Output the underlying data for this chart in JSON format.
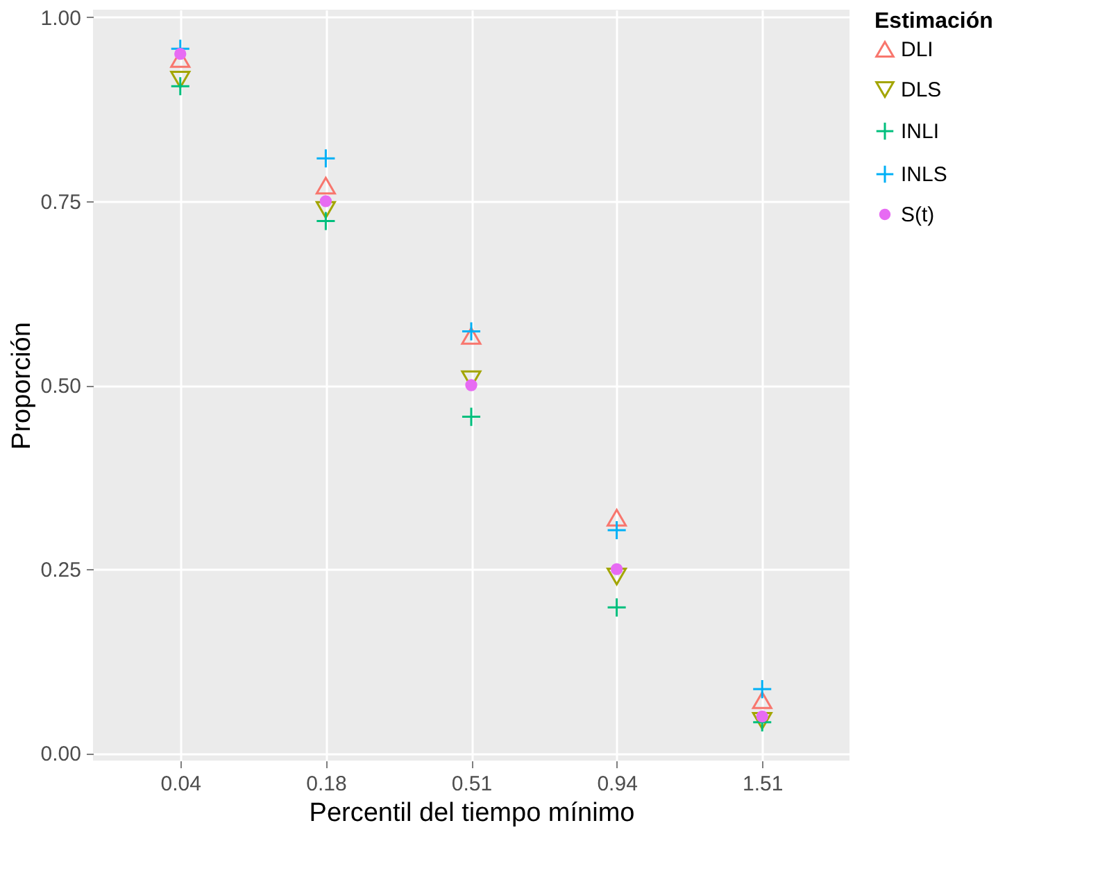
{
  "chart_data": {
    "type": "scatter",
    "xlabel": "Percentil del tiempo mínimo",
    "ylabel": "Proporción",
    "legend_title": "Estimación",
    "categories": [
      "0.04",
      "0.18",
      "0.51",
      "0.94",
      "1.51"
    ],
    "series": [
      {
        "name": "DLI",
        "color": "#f8766d",
        "marker": "triangle",
        "values": [
          0.943,
          0.771,
          0.567,
          0.32,
          0.072
        ]
      },
      {
        "name": "DLS",
        "color": "#a3a500",
        "marker": "triangle-down",
        "values": [
          0.915,
          0.738,
          0.508,
          0.24,
          0.044
        ]
      },
      {
        "name": "INLI",
        "color": "#00bf7d",
        "marker": "cross",
        "values": [
          0.906,
          0.723,
          0.457,
          0.198,
          0.042
        ]
      },
      {
        "name": "INLS",
        "color": "#00b0f6",
        "marker": "cross",
        "values": [
          0.957,
          0.808,
          0.573,
          0.303,
          0.087
        ]
      },
      {
        "name": "S(t)",
        "color": "#e76bf3",
        "marker": "circle",
        "values": [
          0.95,
          0.75,
          0.5,
          0.25,
          0.05
        ]
      }
    ],
    "ylim": [
      -0.01,
      1.01
    ],
    "yticks": [
      {
        "value": 0,
        "label": "0.00"
      },
      {
        "value": 0.25,
        "label": "0.25"
      },
      {
        "value": 0.5,
        "label": "0.50"
      },
      {
        "value": 0.75,
        "label": "0.75"
      },
      {
        "value": 1,
        "label": "1.00"
      }
    ],
    "grid": true,
    "legend": "right"
  }
}
